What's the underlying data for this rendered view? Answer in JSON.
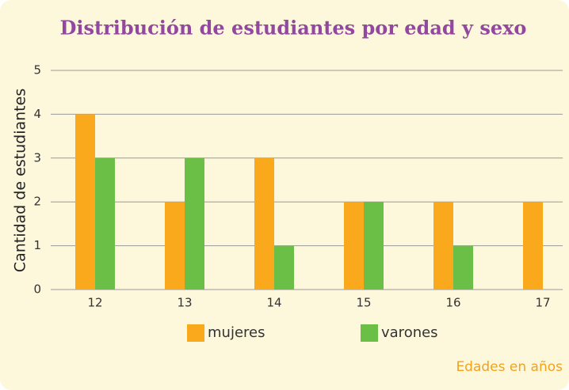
{
  "chart_data": {
    "type": "bar",
    "title": "Distribución de estudiantes por edad y sexo",
    "x_label": "Edades en años",
    "y_label": "Cantidad de estudiantes",
    "categories": [
      "12",
      "13",
      "14",
      "15",
      "16",
      "17"
    ],
    "series": [
      {
        "name": "mujeres",
        "color": "#f9a91b",
        "values": [
          4,
          2,
          3,
          2,
          2,
          2
        ]
      },
      {
        "name": "varones",
        "color": "#6cbf46",
        "values": [
          3,
          3,
          1,
          2,
          1,
          0
        ]
      }
    ],
    "ylim": [
      0,
      5
    ],
    "yticks": [
      0,
      1,
      2,
      3,
      4,
      5
    ],
    "grid": true,
    "legend": "bottom"
  }
}
